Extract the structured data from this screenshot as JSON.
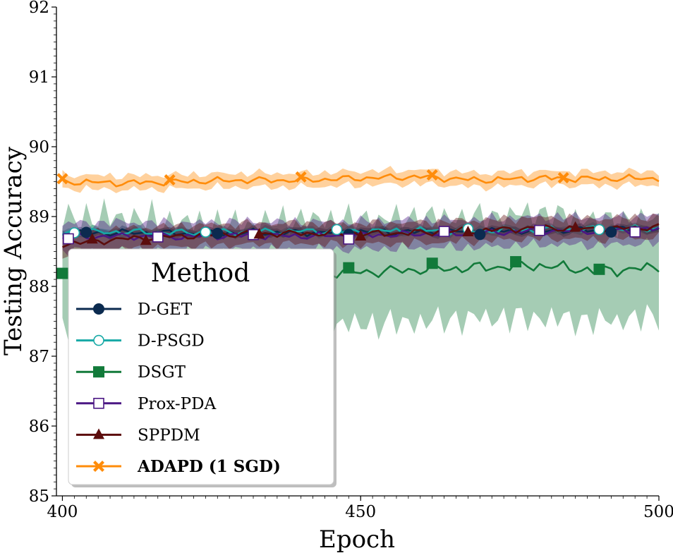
{
  "chart_data": {
    "type": "line",
    "xlabel": "Epoch",
    "ylabel": "Testing Accuracy",
    "xlim": [
      399,
      500
    ],
    "ylim": [
      85,
      92
    ],
    "x_ticks": [
      "400",
      "450",
      "500"
    ],
    "y_ticks": [
      "85",
      "86",
      "87",
      "88",
      "89",
      "90",
      "91",
      "92"
    ],
    "legend": {
      "title": "Method",
      "placement": "lower-left"
    },
    "x": [
      400,
      410,
      420,
      430,
      440,
      450,
      460,
      470,
      480,
      490,
      500
    ],
    "series": [
      {
        "name": "D-GET",
        "color": "#0b2a4f",
        "marker": "circle-filled",
        "bold": false,
        "values": [
          88.76,
          88.77,
          88.76,
          88.77,
          88.77,
          88.78,
          88.78,
          88.79,
          88.8,
          88.81,
          88.82
        ],
        "band": [
          0.05,
          0.05,
          0.05,
          0.05,
          0.05,
          0.05,
          0.05,
          0.05,
          0.05,
          0.05,
          0.05
        ]
      },
      {
        "name": "D-PSGD",
        "color": "#17a9a6",
        "marker": "circle-open",
        "bold": false,
        "values": [
          88.77,
          88.78,
          88.77,
          88.78,
          88.79,
          88.79,
          88.8,
          88.8,
          88.81,
          88.82,
          88.83
        ],
        "band": [
          0.05,
          0.05,
          0.05,
          0.05,
          0.05,
          0.05,
          0.05,
          0.05,
          0.05,
          0.05,
          0.05
        ]
      },
      {
        "name": "DSGT",
        "color": "#127a3a",
        "marker": "square-filled",
        "bold": false,
        "values": [
          88.13,
          88.15,
          88.17,
          88.19,
          88.21,
          88.2,
          88.24,
          88.27,
          88.3,
          88.22,
          88.27
        ],
        "band": [
          0.85,
          0.85,
          0.75,
          0.7,
          0.75,
          0.75,
          0.75,
          0.72,
          0.75,
          0.72,
          0.7
        ]
      },
      {
        "name": "Prox-PDA",
        "color": "#4b1784",
        "marker": "square-open",
        "bold": false,
        "values": [
          88.7,
          88.72,
          88.71,
          88.73,
          88.72,
          88.73,
          88.75,
          88.76,
          88.8,
          88.79,
          88.82
        ],
        "band": [
          0.2,
          0.2,
          0.2,
          0.2,
          0.2,
          0.2,
          0.2,
          0.2,
          0.2,
          0.2,
          0.2
        ]
      },
      {
        "name": "SPPDM",
        "color": "#5c0d0d",
        "marker": "triangle-filled",
        "bold": false,
        "values": [
          88.6,
          88.68,
          88.72,
          88.75,
          88.76,
          88.75,
          88.77,
          88.8,
          88.84,
          88.82,
          88.85
        ],
        "band": [
          0.15,
          0.15,
          0.15,
          0.15,
          0.15,
          0.15,
          0.15,
          0.15,
          0.15,
          0.15,
          0.15
        ]
      },
      {
        "name": "ADAPD (1 SGD)",
        "color": "#ff8c0a",
        "marker": "x-filled",
        "bold": true,
        "values": [
          89.5,
          89.48,
          89.5,
          89.52,
          89.52,
          89.55,
          89.57,
          89.52,
          89.55,
          89.54,
          89.55
        ],
        "band": [
          0.1,
          0.1,
          0.1,
          0.1,
          0.1,
          0.1,
          0.1,
          0.1,
          0.1,
          0.1,
          0.1
        ]
      }
    ]
  }
}
